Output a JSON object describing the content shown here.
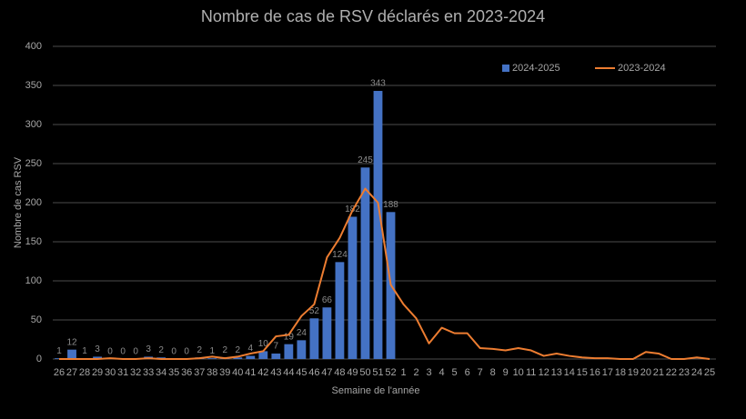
{
  "chart_data": {
    "type": "bar-line",
    "title": "Nombre de cas de RSV déclarés en 2023-2024",
    "x_label": "Semaine de l'année",
    "y_label": "Nombre de cas RSV",
    "categories": [
      "26",
      "27",
      "28",
      "29",
      "30",
      "31",
      "32",
      "33",
      "34",
      "35",
      "36",
      "37",
      "38",
      "39",
      "40",
      "41",
      "42",
      "43",
      "44",
      "45",
      "46",
      "47",
      "48",
      "49",
      "50",
      "51",
      "52",
      "1",
      "2",
      "3",
      "4",
      "5",
      "6",
      "7",
      "8",
      "9",
      "10",
      "11",
      "12",
      "13",
      "14",
      "15",
      "16",
      "17",
      "18",
      "19",
      "20",
      "21",
      "22",
      "23",
      "24",
      "25"
    ],
    "series": [
      {
        "name": "2024-2025",
        "type": "bar",
        "color": "#4472c4",
        "values": [
          1,
          12,
          1,
          3,
          0,
          0,
          0,
          3,
          2,
          0,
          0,
          2,
          1,
          2,
          2,
          4,
          10,
          7,
          19,
          24,
          52,
          66,
          124,
          182,
          245,
          343,
          188,
          null,
          null,
          null,
          null,
          null,
          null,
          null,
          null,
          null,
          null,
          null,
          null,
          null,
          null,
          null,
          null,
          null,
          null,
          null,
          null,
          null,
          null,
          null,
          null,
          null
        ]
      },
      {
        "name": "2023-2024",
        "type": "line",
        "color": "#ed7d31",
        "values": [
          0,
          0,
          0,
          0,
          1,
          0,
          0,
          1,
          0,
          0,
          0,
          1,
          3,
          1,
          3,
          7,
          10,
          29,
          31,
          55,
          70,
          130,
          155,
          190,
          218,
          200,
          95,
          70,
          52,
          20,
          40,
          33,
          33,
          14,
          13,
          11,
          14,
          11,
          4,
          7,
          4,
          2,
          1,
          1,
          0,
          0,
          9,
          7,
          0,
          0,
          2,
          0
        ]
      }
    ],
    "ylim": [
      0,
      400
    ],
    "yticks": [
      0,
      50,
      100,
      150,
      200,
      250,
      300,
      350,
      400
    ],
    "grid": true,
    "legend_position": "top-right"
  }
}
